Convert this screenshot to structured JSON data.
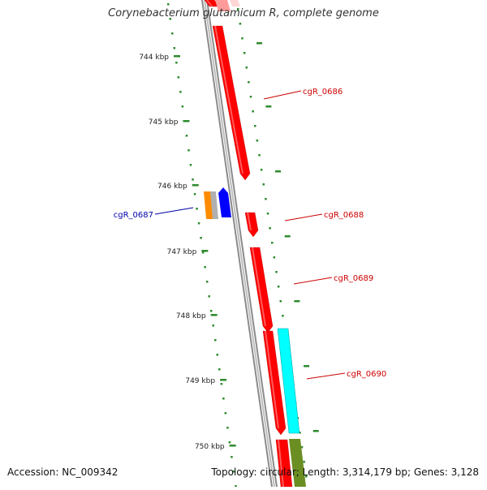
{
  "title": "Corynebacterium glutamicum R, complete genome",
  "footer": {
    "accession": "Accession: NC_009342",
    "summary": "Topology: circular; Length: 3,314,179 bp; Genes: 3,128"
  },
  "ticks": [
    "744 kbp",
    "745 kbp",
    "746 kbp",
    "747 kbp",
    "748 kbp",
    "749 kbp",
    "750 kbp"
  ],
  "gene_labels": [
    {
      "id": "cgR_0686",
      "color": "#cc0000"
    },
    {
      "id": "cgR_0687",
      "color": "#0000aa"
    },
    {
      "id": "cgR_0688",
      "color": "#cc0000"
    },
    {
      "id": "cgR_0689",
      "color": "#cc0000"
    },
    {
      "id": "cgR_0690",
      "color": "#cc0000"
    }
  ],
  "colors": {
    "backbone": "#8a8a8a",
    "gene_red": "#ff0000",
    "gene_blue": "#0000ff",
    "gene_orange": "#ff8c00",
    "gene_gray": "#b0b0b0",
    "gene_cyan": "#00ffff",
    "gene_olive": "#6b8e23",
    "tick_green": "#2e8b2e",
    "dots_green": "#2e8b2e"
  }
}
